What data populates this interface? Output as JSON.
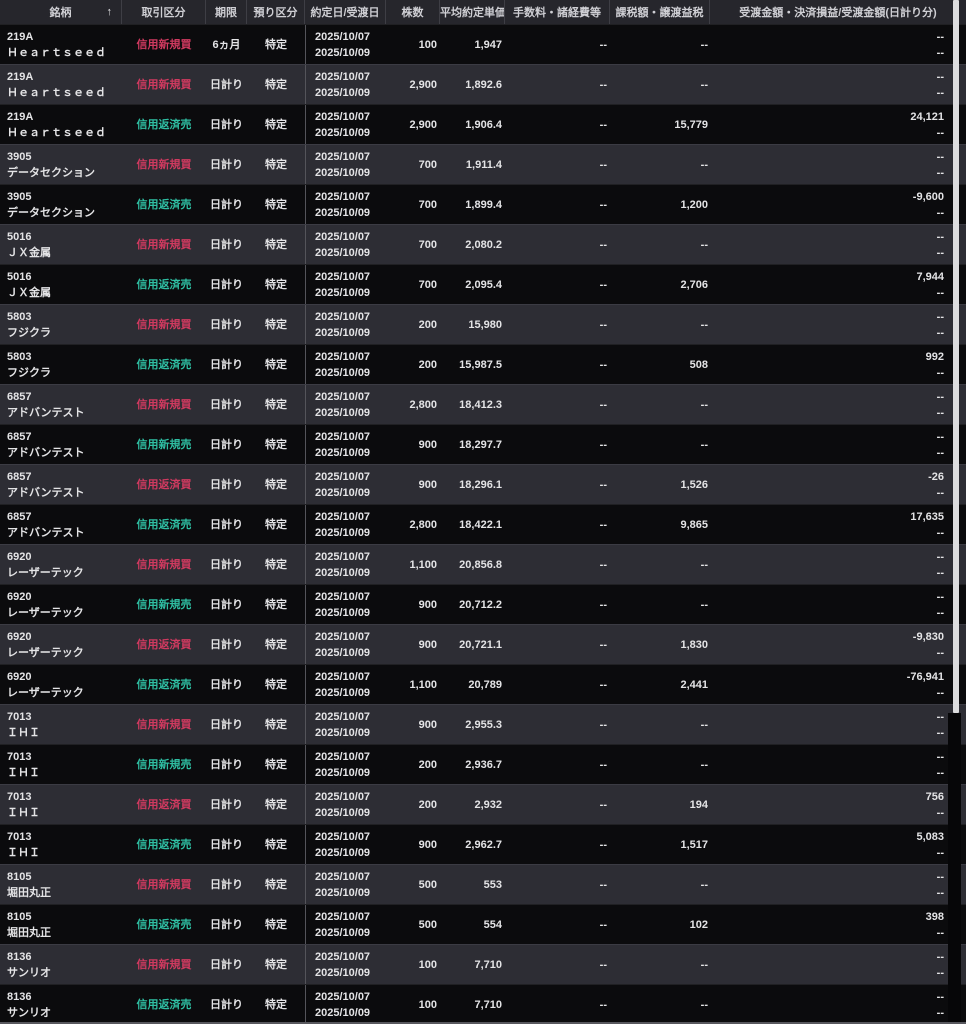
{
  "table": {
    "columns": {
      "stock": "銘柄",
      "type": "取引区分",
      "term": "期限",
      "account": "預り区分",
      "dates": "約定日/受渡日",
      "shares": "株数",
      "price": "平均約定単価",
      "fees": "手数料・諸経費等",
      "tax": "課税額・譲渡益税",
      "amount": "受渡金額・決済損益/受渡金額(日計り分)"
    },
    "sort_icon": "↑",
    "rows": [
      {
        "code": "219A",
        "name": "Ｈｅａｒｔｓｅｅｄ",
        "type": "信用新規買",
        "side": "buy",
        "term": "6ヵ月",
        "account": "特定",
        "trade_date": "2025/10/07",
        "settle_date": "2025/10/09",
        "shares": "100",
        "price": "1,947",
        "fee": "--",
        "tax": "--",
        "amount": "--",
        "amount_daily": "--"
      },
      {
        "code": "219A",
        "name": "Ｈｅａｒｔｓｅｅｄ",
        "type": "信用新規買",
        "side": "buy",
        "term": "日計り",
        "account": "特定",
        "trade_date": "2025/10/07",
        "settle_date": "2025/10/09",
        "shares": "2,900",
        "price": "1,892.6",
        "fee": "--",
        "tax": "--",
        "amount": "--",
        "amount_daily": "--"
      },
      {
        "code": "219A",
        "name": "Ｈｅａｒｔｓｅｅｄ",
        "type": "信用返済売",
        "side": "sell",
        "term": "日計り",
        "account": "特定",
        "trade_date": "2025/10/07",
        "settle_date": "2025/10/09",
        "shares": "2,900",
        "price": "1,906.4",
        "fee": "--",
        "tax": "15,779",
        "amount": "24,121",
        "amount_daily": "--"
      },
      {
        "code": "3905",
        "name": "データセクション",
        "type": "信用新規買",
        "side": "buy",
        "term": "日計り",
        "account": "特定",
        "trade_date": "2025/10/07",
        "settle_date": "2025/10/09",
        "shares": "700",
        "price": "1,911.4",
        "fee": "--",
        "tax": "--",
        "amount": "--",
        "amount_daily": "--"
      },
      {
        "code": "3905",
        "name": "データセクション",
        "type": "信用返済売",
        "side": "sell",
        "term": "日計り",
        "account": "特定",
        "trade_date": "2025/10/07",
        "settle_date": "2025/10/09",
        "shares": "700",
        "price": "1,899.4",
        "fee": "--",
        "tax": "1,200",
        "amount": "-9,600",
        "amount_daily": "--"
      },
      {
        "code": "5016",
        "name": "ＪＸ金属",
        "type": "信用新規買",
        "side": "buy",
        "term": "日計り",
        "account": "特定",
        "trade_date": "2025/10/07",
        "settle_date": "2025/10/09",
        "shares": "700",
        "price": "2,080.2",
        "fee": "--",
        "tax": "--",
        "amount": "--",
        "amount_daily": "--"
      },
      {
        "code": "5016",
        "name": "ＪＸ金属",
        "type": "信用返済売",
        "side": "sell",
        "term": "日計り",
        "account": "特定",
        "trade_date": "2025/10/07",
        "settle_date": "2025/10/09",
        "shares": "700",
        "price": "2,095.4",
        "fee": "--",
        "tax": "2,706",
        "amount": "7,944",
        "amount_daily": "--"
      },
      {
        "code": "5803",
        "name": "フジクラ",
        "type": "信用新規買",
        "side": "buy",
        "term": "日計り",
        "account": "特定",
        "trade_date": "2025/10/07",
        "settle_date": "2025/10/09",
        "shares": "200",
        "price": "15,980",
        "fee": "--",
        "tax": "--",
        "amount": "--",
        "amount_daily": "--"
      },
      {
        "code": "5803",
        "name": "フジクラ",
        "type": "信用返済売",
        "side": "sell",
        "term": "日計り",
        "account": "特定",
        "trade_date": "2025/10/07",
        "settle_date": "2025/10/09",
        "shares": "200",
        "price": "15,987.5",
        "fee": "--",
        "tax": "508",
        "amount": "992",
        "amount_daily": "--"
      },
      {
        "code": "6857",
        "name": "アドバンテスト",
        "type": "信用新規買",
        "side": "buy",
        "term": "日計り",
        "account": "特定",
        "trade_date": "2025/10/07",
        "settle_date": "2025/10/09",
        "shares": "2,800",
        "price": "18,412.3",
        "fee": "--",
        "tax": "--",
        "amount": "--",
        "amount_daily": "--"
      },
      {
        "code": "6857",
        "name": "アドバンテスト",
        "type": "信用新規売",
        "side": "sell",
        "term": "日計り",
        "account": "特定",
        "trade_date": "2025/10/07",
        "settle_date": "2025/10/09",
        "shares": "900",
        "price": "18,297.7",
        "fee": "--",
        "tax": "--",
        "amount": "--",
        "amount_daily": "--"
      },
      {
        "code": "6857",
        "name": "アドバンテスト",
        "type": "信用返済買",
        "side": "buy",
        "term": "日計り",
        "account": "特定",
        "trade_date": "2025/10/07",
        "settle_date": "2025/10/09",
        "shares": "900",
        "price": "18,296.1",
        "fee": "--",
        "tax": "1,526",
        "amount": "-26",
        "amount_daily": "--"
      },
      {
        "code": "6857",
        "name": "アドバンテスト",
        "type": "信用返済売",
        "side": "sell",
        "term": "日計り",
        "account": "特定",
        "trade_date": "2025/10/07",
        "settle_date": "2025/10/09",
        "shares": "2,800",
        "price": "18,422.1",
        "fee": "--",
        "tax": "9,865",
        "amount": "17,635",
        "amount_daily": "--"
      },
      {
        "code": "6920",
        "name": "レーザーテック",
        "type": "信用新規買",
        "side": "buy",
        "term": "日計り",
        "account": "特定",
        "trade_date": "2025/10/07",
        "settle_date": "2025/10/09",
        "shares": "1,100",
        "price": "20,856.8",
        "fee": "--",
        "tax": "--",
        "amount": "--",
        "amount_daily": "--"
      },
      {
        "code": "6920",
        "name": "レーザーテック",
        "type": "信用新規売",
        "side": "sell",
        "term": "日計り",
        "account": "特定",
        "trade_date": "2025/10/07",
        "settle_date": "2025/10/09",
        "shares": "900",
        "price": "20,712.2",
        "fee": "--",
        "tax": "--",
        "amount": "--",
        "amount_daily": "--"
      },
      {
        "code": "6920",
        "name": "レーザーテック",
        "type": "信用返済買",
        "side": "buy",
        "term": "日計り",
        "account": "特定",
        "trade_date": "2025/10/07",
        "settle_date": "2025/10/09",
        "shares": "900",
        "price": "20,721.1",
        "fee": "--",
        "tax": "1,830",
        "amount": "-9,830",
        "amount_daily": "--"
      },
      {
        "code": "6920",
        "name": "レーザーテック",
        "type": "信用返済売",
        "side": "sell",
        "term": "日計り",
        "account": "特定",
        "trade_date": "2025/10/07",
        "settle_date": "2025/10/09",
        "shares": "1,100",
        "price": "20,789",
        "fee": "--",
        "tax": "2,441",
        "amount": "-76,941",
        "amount_daily": "--"
      },
      {
        "code": "7013",
        "name": "ＩＨＩ",
        "type": "信用新規買",
        "side": "buy",
        "term": "日計り",
        "account": "特定",
        "trade_date": "2025/10/07",
        "settle_date": "2025/10/09",
        "shares": "900",
        "price": "2,955.3",
        "fee": "--",
        "tax": "--",
        "amount": "--",
        "amount_daily": "--"
      },
      {
        "code": "7013",
        "name": "ＩＨＩ",
        "type": "信用新規売",
        "side": "sell",
        "term": "日計り",
        "account": "特定",
        "trade_date": "2025/10/07",
        "settle_date": "2025/10/09",
        "shares": "200",
        "price": "2,936.7",
        "fee": "--",
        "tax": "--",
        "amount": "--",
        "amount_daily": "--"
      },
      {
        "code": "7013",
        "name": "ＩＨＩ",
        "type": "信用返済買",
        "side": "buy",
        "term": "日計り",
        "account": "特定",
        "trade_date": "2025/10/07",
        "settle_date": "2025/10/09",
        "shares": "200",
        "price": "2,932",
        "fee": "--",
        "tax": "194",
        "amount": "756",
        "amount_daily": "--"
      },
      {
        "code": "7013",
        "name": "ＩＨＩ",
        "type": "信用返済売",
        "side": "sell",
        "term": "日計り",
        "account": "特定",
        "trade_date": "2025/10/07",
        "settle_date": "2025/10/09",
        "shares": "900",
        "price": "2,962.7",
        "fee": "--",
        "tax": "1,517",
        "amount": "5,083",
        "amount_daily": "--"
      },
      {
        "code": "8105",
        "name": "堀田丸正",
        "type": "信用新規買",
        "side": "buy",
        "term": "日計り",
        "account": "特定",
        "trade_date": "2025/10/07",
        "settle_date": "2025/10/09",
        "shares": "500",
        "price": "553",
        "fee": "--",
        "tax": "--",
        "amount": "--",
        "amount_daily": "--"
      },
      {
        "code": "8105",
        "name": "堀田丸正",
        "type": "信用返済売",
        "side": "sell",
        "term": "日計り",
        "account": "特定",
        "trade_date": "2025/10/07",
        "settle_date": "2025/10/09",
        "shares": "500",
        "price": "554",
        "fee": "--",
        "tax": "102",
        "amount": "398",
        "amount_daily": "--"
      },
      {
        "code": "8136",
        "name": "サンリオ",
        "type": "信用新規買",
        "side": "buy",
        "term": "日計り",
        "account": "特定",
        "trade_date": "2025/10/07",
        "settle_date": "2025/10/09",
        "shares": "100",
        "price": "7,710",
        "fee": "--",
        "tax": "--",
        "amount": "--",
        "amount_daily": "--"
      },
      {
        "code": "8136",
        "name": "サンリオ",
        "type": "信用返済売",
        "side": "sell",
        "term": "日計り",
        "account": "特定",
        "trade_date": "2025/10/07",
        "settle_date": "2025/10/09",
        "shares": "100",
        "price": "7,710",
        "fee": "--",
        "tax": "--",
        "amount": "--",
        "amount_daily": "--"
      }
    ]
  },
  "colors": {
    "buy": "#d13a60",
    "sell": "#2fbfa3",
    "row_dark": "#0b0b0d",
    "row_light": "#2d2d34",
    "header_bg": "#26262c"
  }
}
